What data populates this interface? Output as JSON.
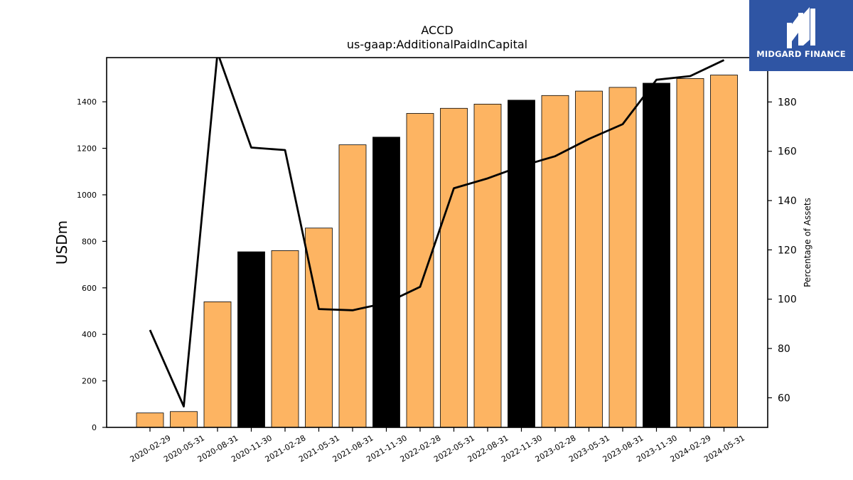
{
  "brand": {
    "name": "MIDGARD FINANCE",
    "bg_color": "#2f55a4"
  },
  "chart_data": {
    "type": "bar",
    "title": "ACCD",
    "subtitle": "us-gaap:AdditionalPaidInCapital",
    "ylabel": "USDm",
    "y2label": "Percentage of Assets",
    "ylim": [
      0,
      1590
    ],
    "y2lim": [
      48,
      198
    ],
    "yticks": [
      0,
      200,
      400,
      600,
      800,
      1000,
      1200,
      1400
    ],
    "y2ticks": [
      60,
      80,
      100,
      120,
      140,
      160,
      180
    ],
    "categories": [
      "2020-02-29",
      "2020-05-31",
      "2020-08-31",
      "2020-11-30",
      "2021-02-28",
      "2021-05-31",
      "2021-08-31",
      "2021-11-30",
      "2022-02-28",
      "2022-05-31",
      "2022-08-31",
      "2022-11-30",
      "2023-02-28",
      "2023-05-31",
      "2023-08-31",
      "2023-11-30",
      "2024-02-29",
      "2024-05-31"
    ],
    "series": [
      {
        "type": "bar",
        "axis": "left",
        "values": [
          62,
          68,
          540,
          755,
          760,
          857,
          1215,
          1248,
          1350,
          1372,
          1390,
          1407,
          1427,
          1446,
          1462,
          1480,
          1500,
          1515
        ],
        "colors": [
          "#fdb462",
          "#fdb462",
          "#fdb462",
          "#000000",
          "#fdb462",
          "#fdb462",
          "#fdb462",
          "#000000",
          "#fdb462",
          "#fdb462",
          "#fdb462",
          "#000000",
          "#fdb462",
          "#fdb462",
          "#fdb462",
          "#000000",
          "#fdb462",
          "#fdb462"
        ]
      },
      {
        "type": "line",
        "axis": "right",
        "color": "#000000",
        "values": [
          87.5,
          56.5,
          200,
          161.5,
          160.5,
          96,
          95.5,
          98.5,
          105,
          145,
          149,
          154,
          158,
          165,
          171,
          189,
          190.5,
          197
        ]
      }
    ]
  }
}
